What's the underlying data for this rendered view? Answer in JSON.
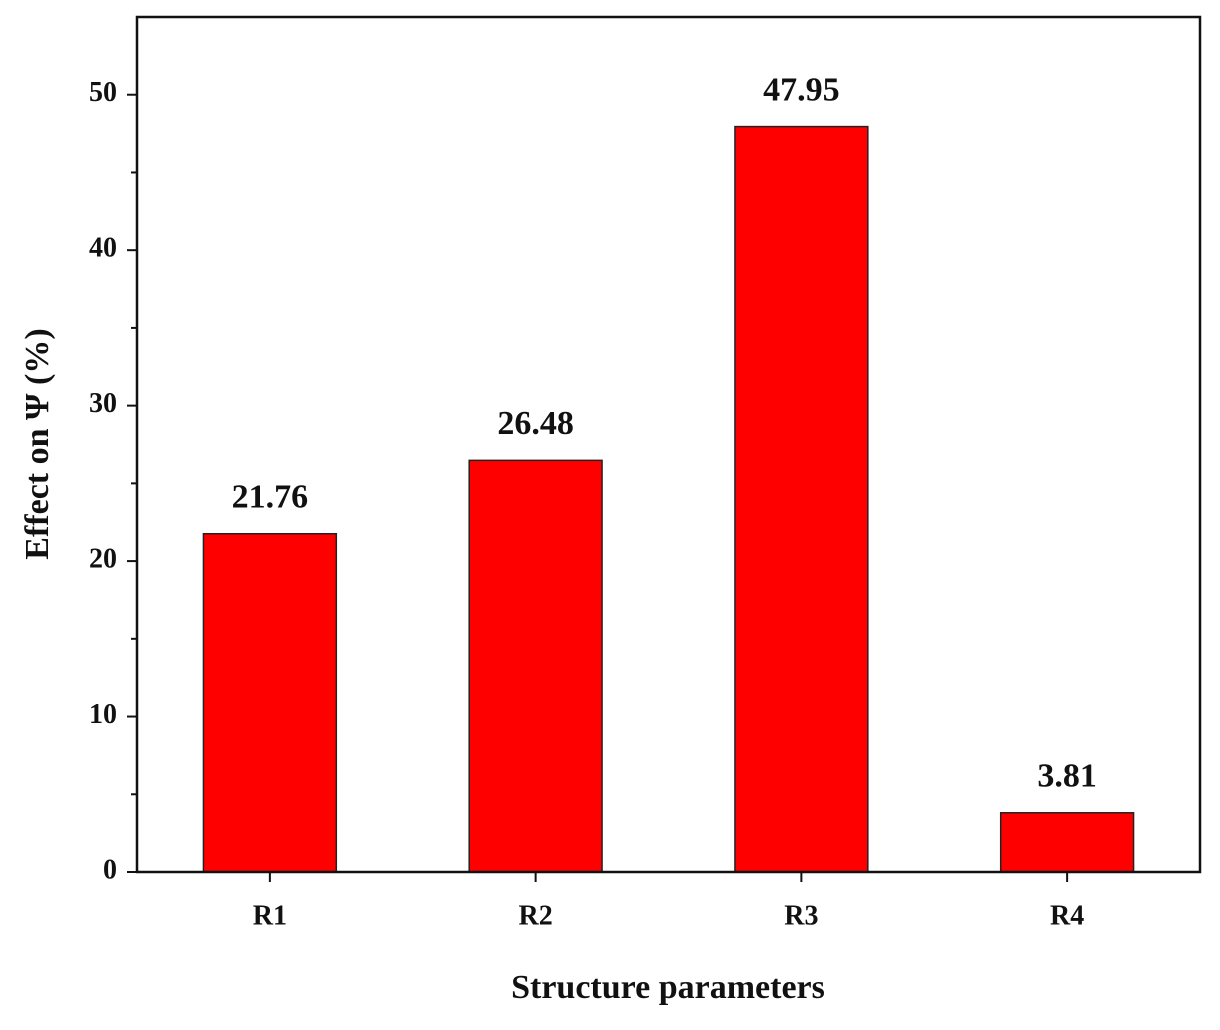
{
  "chart_data": {
    "type": "bar",
    "xlabel": "Structure parameters",
    "ylabel": "Effect on Ψ (%)",
    "categories": [
      "R1",
      "R2",
      "R3",
      "R4"
    ],
    "values": [
      21.76,
      26.48,
      47.95,
      3.81
    ],
    "color": "#ff0000",
    "ylim": [
      0,
      55
    ],
    "yticks": [
      0,
      10,
      20,
      30,
      40,
      50
    ]
  }
}
